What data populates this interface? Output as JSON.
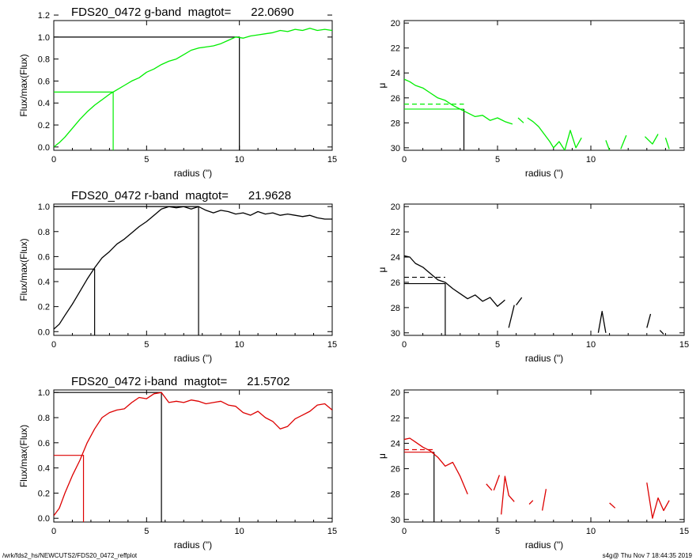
{
  "footer": {
    "path": "/wrk/fds2_hs/NEWCUTS2/FDS20_0472_reffplot",
    "stamp": "s4g@  Thu Nov  7 18:44:35 2019"
  },
  "chart_data": [
    {
      "type": "line",
      "panel": "growth-curve",
      "band": "g",
      "title": "FDS20_0472 g-band  magtot=      22.0690",
      "xlabel": "radius (\")",
      "ylabel": "Flux/max(Flux)",
      "xlim": [
        0,
        15
      ],
      "ylim": [
        -0.03,
        1.15
      ],
      "xticks": [
        0,
        5,
        10,
        15
      ],
      "yticks": [
        0.0,
        0.2,
        0.4,
        0.6,
        0.8,
        1.0,
        1.2
      ],
      "ytick_labels": [
        "0.0",
        "0.2",
        "0.4",
        "0.6",
        "0.8",
        "1.0",
        "1.2"
      ],
      "color": "#00ee00",
      "reference_color": "#000000",
      "half_light_radius": 3.2,
      "total_radius": 10.0,
      "series": [
        {
          "x": [
            0.0,
            0.3,
            0.6,
            1.0,
            1.4,
            1.8,
            2.2,
            2.6,
            3.0,
            3.4,
            3.8,
            4.2,
            4.6,
            5.0,
            5.4,
            5.8,
            6.2,
            6.6,
            7.0,
            7.4,
            7.8,
            8.2,
            8.6,
            9.0,
            9.4,
            9.8,
            10.2,
            10.6,
            11.0,
            11.4,
            11.8,
            12.2,
            12.6,
            13.0,
            13.4,
            13.8,
            14.2,
            14.6,
            15.0
          ],
          "y": [
            0.0,
            0.04,
            0.09,
            0.17,
            0.25,
            0.32,
            0.38,
            0.43,
            0.48,
            0.52,
            0.56,
            0.6,
            0.63,
            0.68,
            0.71,
            0.75,
            0.78,
            0.8,
            0.84,
            0.88,
            0.9,
            0.91,
            0.92,
            0.94,
            0.97,
            1.0,
            0.99,
            1.01,
            1.02,
            1.03,
            1.04,
            1.06,
            1.05,
            1.07,
            1.06,
            1.08,
            1.06,
            1.07,
            1.06
          ]
        }
      ]
    },
    {
      "type": "line",
      "panel": "surface-brightness",
      "band": "g",
      "title": "",
      "xlabel": "radius (\")",
      "ylabel": "μ",
      "xlim": [
        0,
        15
      ],
      "ylim": [
        30.2,
        19.8
      ],
      "y_inverted": true,
      "xticks": [
        0,
        5,
        10
      ],
      "yticks": [
        20,
        22,
        24,
        26,
        28,
        30
      ],
      "color": "#00ee00",
      "mu_eff": 26.9,
      "mu_mean_eff": 26.5,
      "r_eff": 3.2,
      "series": [
        {
          "x": [
            0.0,
            0.3,
            0.6,
            1.0,
            1.4,
            1.8,
            2.2,
            2.6,
            3.0,
            3.4,
            3.8,
            4.2,
            4.6,
            5.0,
            5.4,
            5.8
          ],
          "y": [
            24.5,
            24.7,
            25.0,
            25.2,
            25.6,
            26.0,
            26.2,
            26.6,
            26.9,
            27.2,
            27.5,
            27.4,
            27.8,
            27.6,
            27.9,
            28.1
          ]
        },
        {
          "x": [
            6.1,
            6.4
          ],
          "y": [
            27.6,
            28.0
          ]
        },
        {
          "x": [
            6.6,
            6.9,
            7.2,
            7.5,
            7.8,
            8.0,
            8.3,
            8.6,
            8.9,
            9.2,
            9.5
          ],
          "y": [
            27.6,
            27.9,
            28.3,
            28.9,
            29.5,
            30.0,
            29.5,
            30.2,
            28.6,
            30.0,
            29.2
          ]
        },
        {
          "x": [
            10.8,
            11.0
          ],
          "y": [
            29.4,
            30.2
          ]
        },
        {
          "x": [
            11.6,
            11.9
          ],
          "y": [
            30.1,
            29.0
          ]
        },
        {
          "x": [
            12.9,
            13.3,
            13.6
          ],
          "y": [
            29.1,
            29.7,
            28.9
          ]
        },
        {
          "x": [
            14.0,
            14.2
          ],
          "y": [
            29.2,
            30.1
          ]
        }
      ]
    },
    {
      "type": "line",
      "panel": "growth-curve",
      "band": "r",
      "title": "FDS20_0472 r-band  magtot=      21.9628",
      "xlabel": "radius (\")",
      "ylabel": "Flux/max(Flux)",
      "xlim": [
        0,
        15
      ],
      "ylim": [
        -0.03,
        1.02
      ],
      "xticks": [
        0,
        5,
        10,
        15
      ],
      "yticks": [
        0.0,
        0.2,
        0.4,
        0.6,
        0.8,
        1.0
      ],
      "ytick_labels": [
        "0.0",
        "0.2",
        "0.4",
        "0.6",
        "0.8",
        "1.0"
      ],
      "color": "#000000",
      "reference_color": "#000000",
      "half_light_radius": 2.2,
      "total_radius": 7.8,
      "series": [
        {
          "x": [
            0.0,
            0.3,
            0.6,
            1.0,
            1.4,
            1.8,
            2.2,
            2.6,
            3.0,
            3.4,
            3.8,
            4.2,
            4.6,
            5.0,
            5.4,
            5.8,
            6.2,
            6.6,
            7.0,
            7.4,
            7.8,
            8.2,
            8.6,
            9.0,
            9.4,
            9.8,
            10.2,
            10.6,
            11.0,
            11.4,
            11.8,
            12.2,
            12.6,
            13.0,
            13.4,
            13.8,
            14.2,
            14.6,
            15.0
          ],
          "y": [
            0.02,
            0.06,
            0.13,
            0.22,
            0.32,
            0.42,
            0.51,
            0.59,
            0.64,
            0.7,
            0.74,
            0.79,
            0.84,
            0.88,
            0.93,
            0.98,
            1.0,
            0.99,
            1.0,
            0.98,
            1.0,
            0.97,
            0.95,
            0.97,
            0.96,
            0.94,
            0.95,
            0.93,
            0.96,
            0.94,
            0.95,
            0.93,
            0.94,
            0.93,
            0.92,
            0.93,
            0.91,
            0.9,
            0.9
          ]
        }
      ]
    },
    {
      "type": "line",
      "panel": "surface-brightness",
      "band": "r",
      "title": "",
      "xlabel": "radius (\")",
      "ylabel": "μ",
      "xlim": [
        0,
        15
      ],
      "ylim": [
        30.2,
        19.8
      ],
      "y_inverted": true,
      "xticks": [
        0,
        5,
        10,
        15
      ],
      "yticks": [
        20,
        22,
        24,
        26,
        28,
        30
      ],
      "color": "#000000",
      "mu_eff": 26.1,
      "mu_mean_eff": 25.6,
      "r_eff": 2.2,
      "series": [
        {
          "x": [
            0.0,
            0.3,
            0.6,
            1.0,
            1.4,
            1.8,
            2.2,
            2.6,
            3.0,
            3.4,
            3.8,
            4.2,
            4.6,
            5.0,
            5.4
          ],
          "y": [
            23.9,
            24.0,
            24.5,
            24.8,
            25.3,
            25.8,
            26.0,
            26.5,
            26.9,
            27.3,
            27.0,
            27.5,
            27.2,
            27.9,
            27.4
          ]
        },
        {
          "x": [
            5.6,
            5.9
          ],
          "y": [
            29.6,
            27.8
          ]
        },
        {
          "x": [
            6.0,
            6.3
          ],
          "y": [
            27.8,
            27.2
          ]
        },
        {
          "x": [
            10.4,
            10.6,
            10.8
          ],
          "y": [
            30.0,
            28.3,
            30.0
          ]
        },
        {
          "x": [
            13.0,
            13.2
          ],
          "y": [
            29.6,
            28.5
          ]
        },
        {
          "x": [
            13.7,
            13.9
          ],
          "y": [
            29.8,
            30.1
          ]
        }
      ]
    },
    {
      "type": "line",
      "panel": "growth-curve",
      "band": "i",
      "title": "FDS20_0472 i-band  magtot=      21.5702",
      "xlabel": "radius (\")",
      "ylabel": "Flux/max(Flux)",
      "xlim": [
        0,
        15
      ],
      "ylim": [
        -0.03,
        1.02
      ],
      "xticks": [
        0,
        5,
        10,
        15
      ],
      "yticks": [
        0.0,
        0.2,
        0.4,
        0.6,
        0.8,
        1.0
      ],
      "ytick_labels": [
        "0.0",
        "0.2",
        "0.4",
        "0.6",
        "0.8",
        "1.0"
      ],
      "color": "#dd0000",
      "reference_color": "#000000",
      "half_light_radius": 1.6,
      "total_radius": 5.8,
      "series": [
        {
          "x": [
            0.0,
            0.3,
            0.6,
            1.0,
            1.4,
            1.8,
            2.2,
            2.6,
            3.0,
            3.4,
            3.8,
            4.2,
            4.6,
            5.0,
            5.4,
            5.8,
            6.2,
            6.6,
            7.0,
            7.4,
            7.8,
            8.2,
            8.6,
            9.0,
            9.4,
            9.8,
            10.2,
            10.6,
            11.0,
            11.4,
            11.8,
            12.2,
            12.6,
            13.0,
            13.4,
            13.8,
            14.2,
            14.6,
            15.0
          ],
          "y": [
            0.02,
            0.08,
            0.2,
            0.34,
            0.46,
            0.6,
            0.71,
            0.8,
            0.84,
            0.86,
            0.87,
            0.92,
            0.96,
            0.95,
            0.99,
            1.0,
            0.92,
            0.93,
            0.92,
            0.94,
            0.93,
            0.91,
            0.92,
            0.93,
            0.9,
            0.89,
            0.84,
            0.82,
            0.85,
            0.8,
            0.77,
            0.71,
            0.73,
            0.79,
            0.82,
            0.85,
            0.9,
            0.91,
            0.86
          ]
        }
      ]
    },
    {
      "type": "line",
      "panel": "surface-brightness",
      "band": "i",
      "title": "",
      "xlabel": "radius (\")",
      "ylabel": "μ",
      "xlim": [
        0,
        15
      ],
      "ylim": [
        30.2,
        19.8
      ],
      "y_inverted": true,
      "xticks": [
        0,
        5,
        10,
        15
      ],
      "yticks": [
        20,
        22,
        24,
        26,
        28,
        30
      ],
      "color": "#dd0000",
      "mu_eff": 24.7,
      "mu_mean_eff": 24.5,
      "r_eff": 1.6,
      "series": [
        {
          "x": [
            0.0,
            0.3,
            0.6,
            1.0,
            1.4,
            1.8,
            2.2,
            2.6,
            3.0,
            3.4
          ],
          "y": [
            23.7,
            23.6,
            23.9,
            24.3,
            24.6,
            25.1,
            25.8,
            25.5,
            26.6,
            28.0
          ]
        },
        {
          "x": [
            4.4,
            4.7
          ],
          "y": [
            27.2,
            27.7
          ]
        },
        {
          "x": [
            4.8,
            5.1
          ],
          "y": [
            27.7,
            26.5
          ]
        },
        {
          "x": [
            5.2,
            5.4,
            5.6,
            5.9
          ],
          "y": [
            29.6,
            26.6,
            28.1,
            28.6
          ]
        },
        {
          "x": [
            6.7,
            6.9
          ],
          "y": [
            28.8,
            28.5
          ]
        },
        {
          "x": [
            7.4,
            7.6
          ],
          "y": [
            29.3,
            27.6
          ]
        },
        {
          "x": [
            11.0,
            11.3
          ],
          "y": [
            28.7,
            29.1
          ]
        },
        {
          "x": [
            13.0,
            13.3,
            13.6,
            13.9,
            14.2
          ],
          "y": [
            27.1,
            29.9,
            28.3,
            29.3,
            28.5
          ]
        }
      ]
    }
  ]
}
